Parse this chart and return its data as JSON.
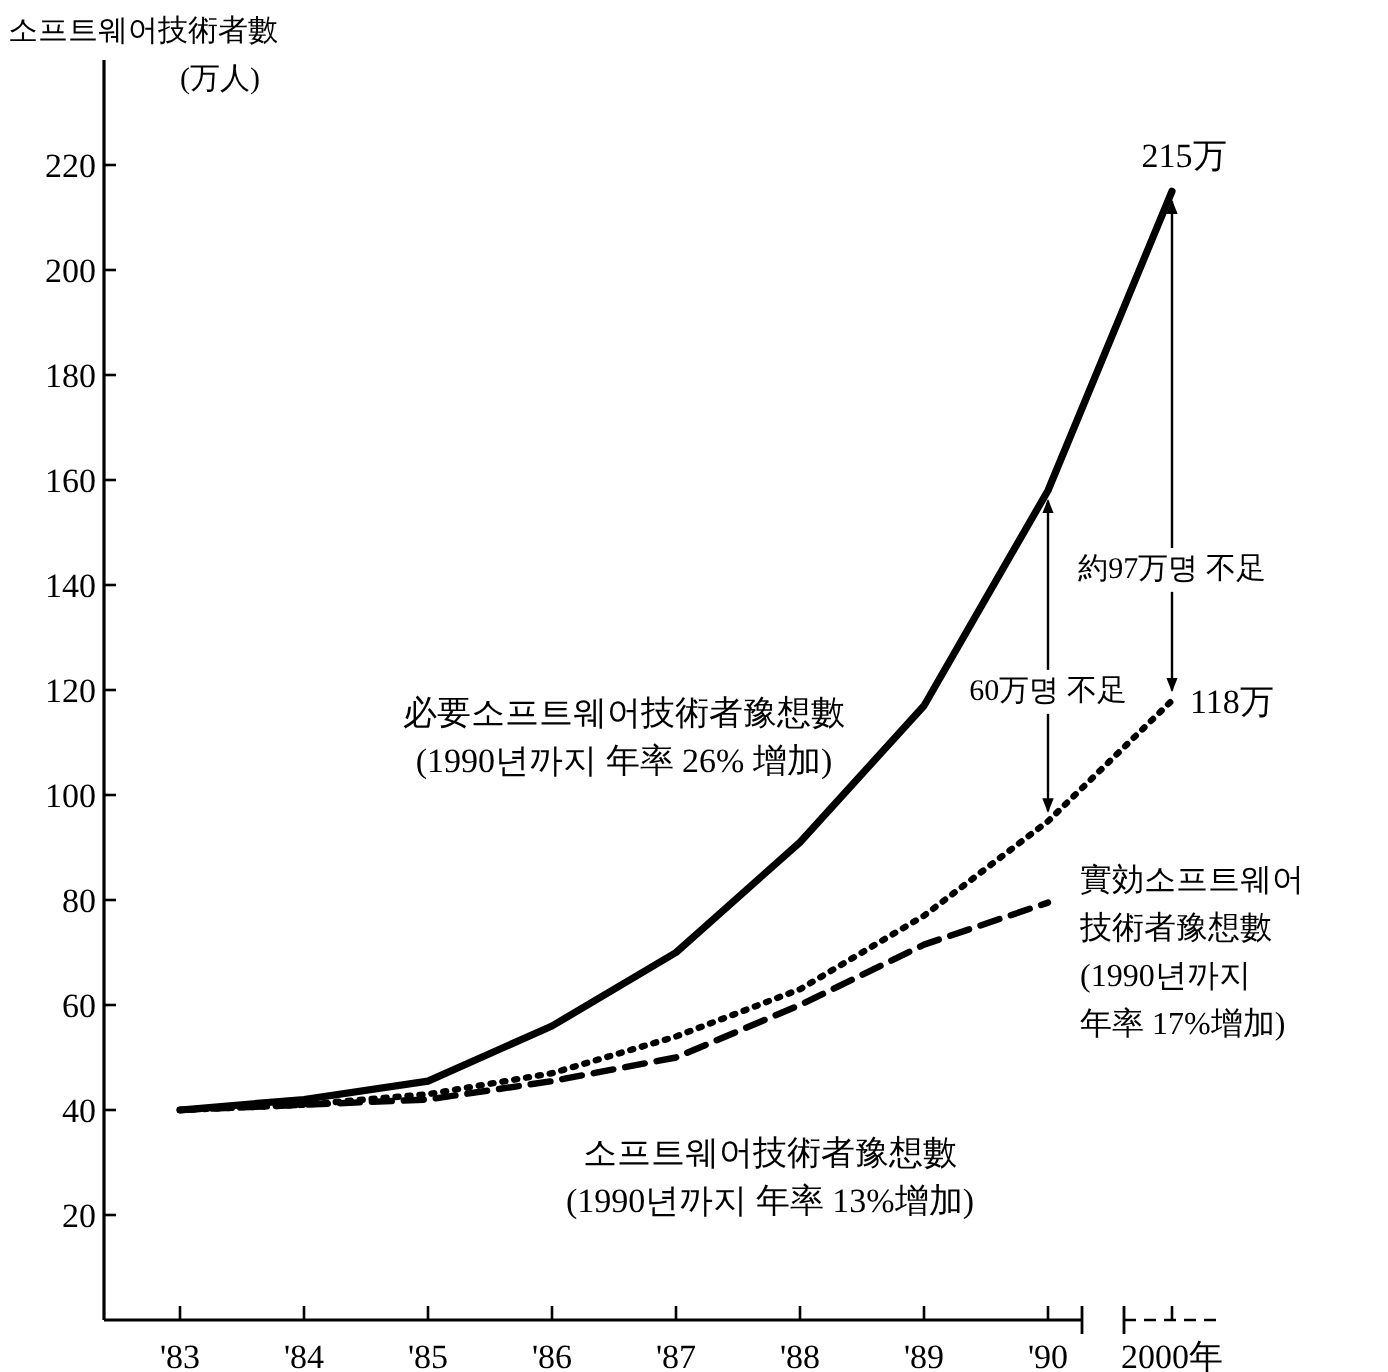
{
  "chart_data": {
    "type": "line",
    "ylabel": "소프트웨어技術者數\n(万人)",
    "categories": [
      "'83",
      "'84",
      "'85",
      "'86",
      "'87",
      "'88",
      "'89",
      "'90",
      "2000年"
    ],
    "ylim": [
      0,
      240
    ],
    "yticks": [
      20,
      40,
      60,
      80,
      100,
      120,
      140,
      160,
      180,
      200,
      220
    ],
    "grid": false,
    "series": [
      {
        "name": "必要소프트웨어技術者豫想數\n(1990년까지 年率 26% 增加)",
        "color": "#000000",
        "line_style": "solid",
        "values": [
          40,
          42,
          45.5,
          56,
          70,
          91,
          117,
          158,
          215
        ],
        "value_labels": [
          null,
          null,
          null,
          null,
          null,
          null,
          null,
          null,
          "215万"
        ]
      },
      {
        "name": "實効소프트웨어\n技術者豫想數\n(1990년까지\n年率 17%增加)",
        "color": "#000000",
        "line_style": "dotted",
        "values": [
          40,
          41,
          43,
          47,
          54,
          63,
          77,
          95,
          118
        ],
        "value_labels": [
          null,
          null,
          null,
          null,
          null,
          null,
          null,
          null,
          "118万"
        ]
      },
      {
        "name": "소프트웨어技術者豫想數\n(1990년까지 年率 13%增加)",
        "color": "#000000",
        "line_style": "dashed",
        "values": [
          40,
          41,
          42,
          45.5,
          50,
          60,
          71.5,
          79.5,
          null
        ]
      }
    ],
    "annotations": [
      {
        "text": "60万명 不足",
        "x": "'90",
        "y": 158
      },
      {
        "text": "約97万명 不足",
        "x": "2000年",
        "y": 215
      }
    ]
  }
}
